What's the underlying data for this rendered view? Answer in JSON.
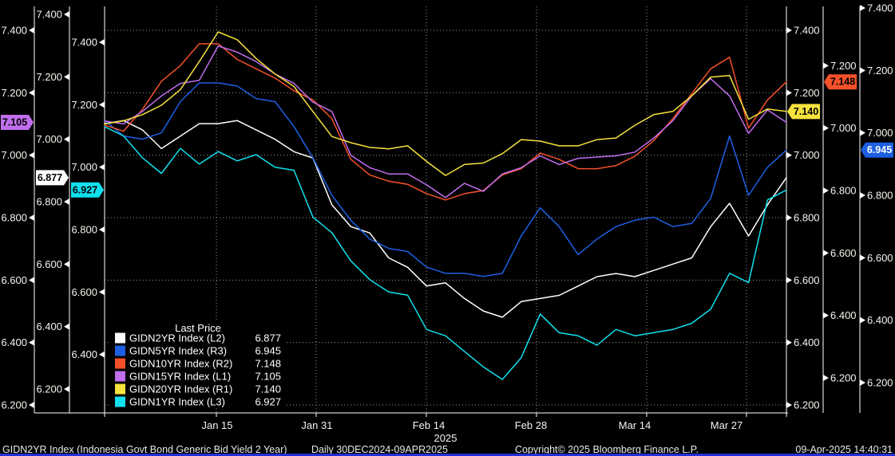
{
  "chart_data": {
    "type": "line",
    "title": "GIDN2YR Index (Indonesia Govt Bond Generic Bid Yield 2 Year)",
    "frequency_range": "Daily 30DEC2024-09APR2025",
    "year_label": "2025",
    "x_tick_labels": [
      "Jan 15",
      "Jan 31",
      "Feb 14",
      "Feb 28",
      "Mar 14",
      "Mar 27"
    ],
    "y_tick_labels": [
      "7.400",
      "7.200",
      "7.000",
      "6.800",
      "6.600",
      "6.400",
      "6.200"
    ],
    "y_axis_range": [
      6.2,
      7.4
    ],
    "grid": true,
    "legend": {
      "title": "Last Price"
    },
    "series": [
      {
        "name": "GIDN2YR Index",
        "label": "GIDN2YR Index  (L2)",
        "axis": "L2",
        "last": "6.877",
        "color": "#ffffff",
        "badge_text": "#000000",
        "values": [
          7.05,
          7.06,
          7.03,
          6.97,
          7.01,
          7.05,
          7.05,
          7.06,
          7.03,
          7.0,
          6.96,
          6.94,
          6.79,
          6.72,
          6.7,
          6.62,
          6.59,
          6.53,
          6.54,
          6.49,
          6.45,
          6.43,
          6.48,
          6.49,
          6.5,
          6.53,
          6.56,
          6.57,
          6.56,
          6.58,
          6.6,
          6.62,
          6.72,
          6.795,
          6.69,
          6.79,
          6.877
        ]
      },
      {
        "name": "GIDN5YR Index",
        "label": "GIDN5YR Index  (R3)",
        "axis": "R3",
        "last": "6.945",
        "color": "#1d5fe2",
        "badge_text": "#ffffff",
        "values": [
          7.04,
          6.99,
          6.98,
          7.0,
          7.1,
          7.16,
          7.16,
          7.15,
          7.11,
          7.1,
          7.02,
          6.92,
          6.8,
          6.72,
          6.66,
          6.63,
          6.62,
          6.57,
          6.55,
          6.55,
          6.54,
          6.55,
          6.67,
          6.76,
          6.7,
          6.61,
          6.66,
          6.7,
          6.72,
          6.73,
          6.7,
          6.71,
          6.79,
          6.99,
          6.8,
          6.89,
          6.945
        ]
      },
      {
        "name": "GIDN10YR Index",
        "label": "GIDN10YR Index  (R2)",
        "axis": "R2",
        "last": "7.148",
        "color": "#f4512a",
        "badge_text": "#000000",
        "values": [
          7.01,
          6.99,
          7.06,
          7.15,
          7.2,
          7.27,
          7.27,
          7.22,
          7.19,
          7.16,
          7.12,
          7.09,
          7.03,
          6.9,
          6.85,
          6.83,
          6.82,
          6.79,
          6.77,
          6.79,
          6.8,
          6.85,
          6.87,
          6.92,
          6.9,
          6.87,
          6.87,
          6.88,
          6.91,
          6.96,
          7.03,
          7.11,
          7.19,
          7.227,
          7.0,
          7.09,
          7.148
        ]
      },
      {
        "name": "GIDN15YR Index",
        "label": "GIDN15YR Index  (L1)",
        "axis": "L1",
        "last": "7.105",
        "color": "#c06eec",
        "badge_text": "#000000",
        "values": [
          7.11,
          7.1,
          7.14,
          7.19,
          7.23,
          7.24,
          7.35,
          7.33,
          7.3,
          7.26,
          7.23,
          7.17,
          7.14,
          7.0,
          6.96,
          6.94,
          6.94,
          6.905,
          6.864,
          6.91,
          6.884,
          6.94,
          6.96,
          6.998,
          6.97,
          6.99,
          6.994,
          6.998,
          7.01,
          7.055,
          7.11,
          7.19,
          7.245,
          7.19,
          7.07,
          7.145,
          7.105
        ]
      },
      {
        "name": "GIDN20YR Index",
        "label": "GIDN20YR Index  (R1)",
        "axis": "R1",
        "last": "7.140",
        "color": "#f5e23d",
        "badge_text": "#000000",
        "values": [
          7.1,
          7.11,
          7.13,
          7.16,
          7.21,
          7.3,
          7.395,
          7.37,
          7.31,
          7.26,
          7.22,
          7.14,
          7.06,
          7.04,
          7.025,
          7.02,
          7.03,
          6.98,
          6.935,
          6.97,
          6.975,
          7.005,
          7.05,
          7.045,
          7.03,
          7.03,
          7.05,
          7.055,
          7.096,
          7.13,
          7.14,
          7.19,
          7.25,
          7.255,
          7.115,
          7.148,
          7.14
        ]
      },
      {
        "name": "GIDN1YR Index",
        "label": "GIDN1YR Index  (L3)",
        "axis": "L3",
        "last": "6.927",
        "color": "#10e0ee",
        "badge_text": "#000000",
        "values": [
          7.13,
          7.1,
          7.03,
          6.98,
          7.06,
          7.01,
          7.05,
          7.02,
          7.04,
          7.0,
          6.99,
          6.84,
          6.79,
          6.7,
          6.64,
          6.6,
          6.59,
          6.48,
          6.46,
          6.41,
          6.36,
          6.32,
          6.39,
          6.53,
          6.47,
          6.46,
          6.43,
          6.48,
          6.46,
          6.47,
          6.48,
          6.5,
          6.545,
          6.66,
          6.63,
          6.895,
          6.927
        ]
      }
    ]
  },
  "footer": {
    "copyright": "Copyright© 2025 Bloomberg Finance L.P.",
    "timestamp": "09-Apr-2025 14:40:31"
  },
  "window": {
    "bottom_bar_color": "#2130d6"
  }
}
